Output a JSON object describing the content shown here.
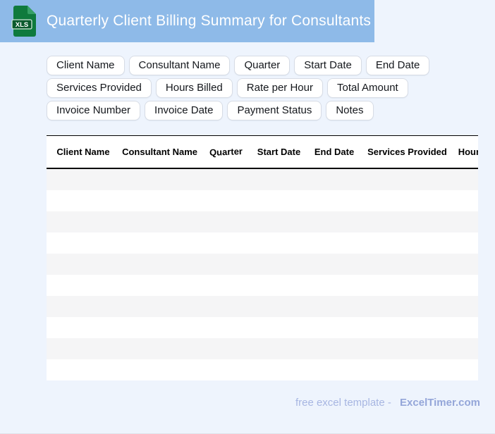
{
  "header": {
    "title": "Quarterly Client Billing Summary for Consultants",
    "file_icon_label": "XLS",
    "banner_color": "#8ebae8",
    "icon_green": "#0f7a3d",
    "icon_green_dark": "#0b5a2d"
  },
  "tags": {
    "items": [
      "Client Name",
      "Consultant Name",
      "Quarter",
      "Start Date",
      "End Date",
      "Services Provided",
      "Hours Billed",
      "Rate per Hour",
      "Total Amount",
      "Invoice Number",
      "Invoice Date",
      "Payment Status",
      "Notes"
    ]
  },
  "table": {
    "columns": [
      {
        "label": "Client Name"
      },
      {
        "label": "Consultant Name"
      },
      {
        "label": "Quarter"
      },
      {
        "label": "Start Date"
      },
      {
        "label": "End Date"
      },
      {
        "label": "Services Provided"
      },
      {
        "label": "Hours Billed"
      }
    ],
    "row_count": 10,
    "stripe_color": "#f5f5f6"
  },
  "footer": {
    "prefix": "free excel template -",
    "brand": "ExcelTimer.com"
  }
}
